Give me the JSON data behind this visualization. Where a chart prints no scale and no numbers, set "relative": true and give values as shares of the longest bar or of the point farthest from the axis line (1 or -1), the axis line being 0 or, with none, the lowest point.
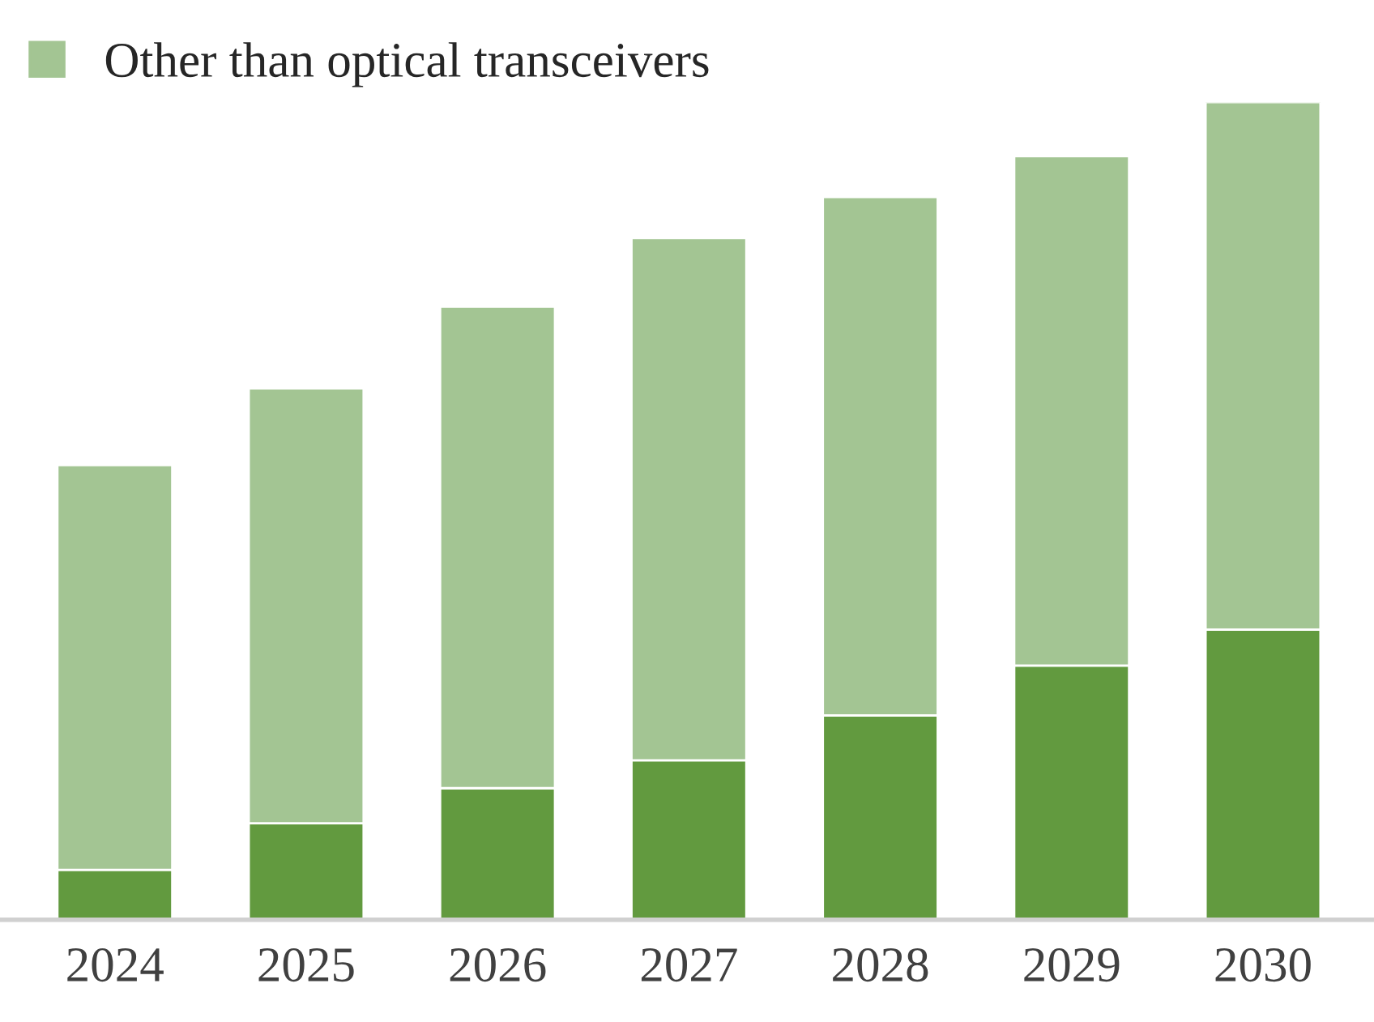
{
  "chart_data": {
    "type": "bar",
    "stacked": true,
    "relative": true,
    "categories": [
      "2024",
      "2025",
      "2026",
      "2027",
      "2028",
      "2029",
      "2030"
    ],
    "series": [
      {
        "color": "#629a3f",
        "values": [
          0.061,
          0.118,
          0.161,
          0.195,
          0.25,
          0.311,
          0.355
        ]
      },
      {
        "name": "Other than optical transceivers",
        "color": "#a3c593",
        "values": [
          0.495,
          0.532,
          0.589,
          0.639,
          0.634,
          0.623,
          0.645
        ]
      }
    ],
    "legend": "top left",
    "grid": false
  }
}
